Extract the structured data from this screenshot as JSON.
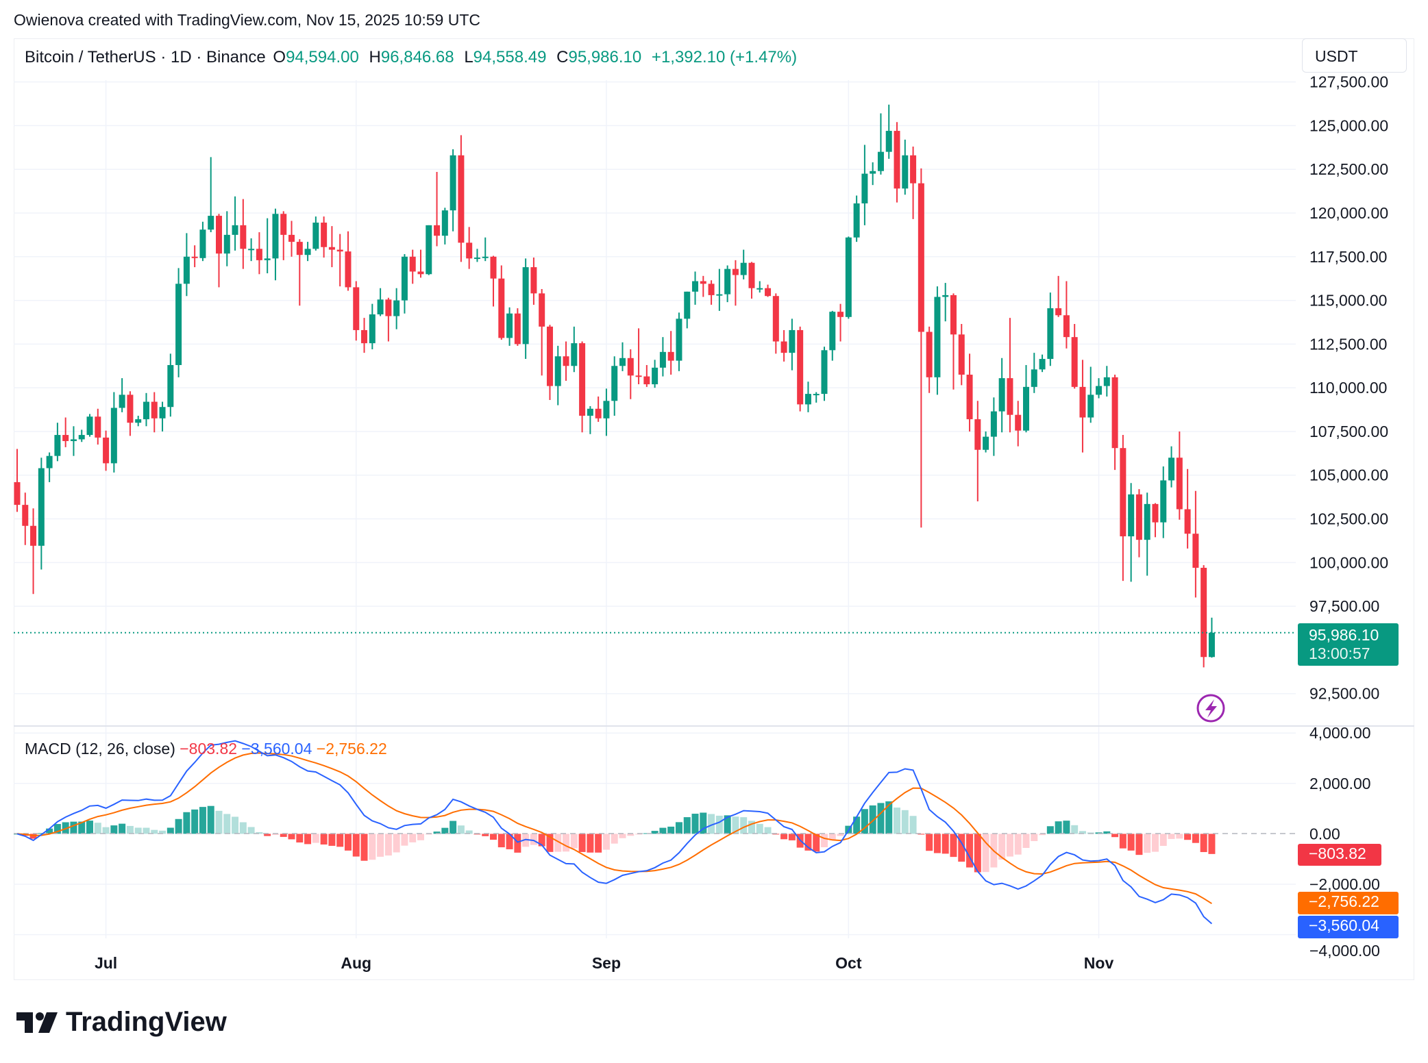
{
  "credit": "Owienova created with TradingView.com, Nov 15, 2025 10:59 UTC",
  "legend": {
    "symbol": "Bitcoin / TetherUS · 1D · Binance",
    "o_label": "O",
    "o": "94,594.00",
    "h_label": "H",
    "h": "96,846.68",
    "l_label": "L",
    "l": "94,558.49",
    "c_label": "C",
    "c": "95,986.10",
    "change": "+1,392.10 (+1.47%)"
  },
  "currency": "USDT",
  "last_price": {
    "price": "95,986.10",
    "countdown": "13:00:57"
  },
  "macd_legend": {
    "name": "MACD (12, 26, close)",
    "histogram": "−803.82",
    "macd": "−3,560.04",
    "signal": "−2,756.22"
  },
  "macd_tags": {
    "histogram": "−803.82",
    "signal": "−2,756.22",
    "macd": "−3,560.04"
  },
  "brand": "TradingView",
  "colors": {
    "up": "#089981",
    "down": "#f23645",
    "macd": "#2962ff",
    "signal": "#ff6d00",
    "hist_up_strong": "#26a69a",
    "hist_up_weak": "#b2dfdb",
    "hist_down_strong": "#ff5252",
    "hist_down_weak": "#ffcdd2",
    "lightning": "#9c27b0"
  },
  "icons": {
    "lightning": "lightning-bolt-icon",
    "logo": "tradingview-logo-icon"
  },
  "chart_data": {
    "type": "candlestick",
    "timeframe": "1D",
    "price_axis": {
      "ticks": [
        "92,500.00",
        "97,500.00",
        "100,000.00",
        "102,500.00",
        "105,000.00",
        "107,500.00",
        "110,000.00",
        "112,500.00",
        "115,000.00",
        "117,500.00",
        "120,000.00",
        "122,500.00",
        "125,000.00",
        "127,500.00"
      ],
      "tick_values": [
        92500,
        97500,
        100000,
        102500,
        105000,
        107500,
        110000,
        112500,
        115000,
        117500,
        120000,
        122500,
        125000,
        127500
      ],
      "grid": true
    },
    "time_axis": {
      "labels": [
        "Jul",
        "Aug",
        "Sep",
        "Oct",
        "Nov"
      ],
      "dates": [
        "2025-07-01",
        "2025-08-01",
        "2025-09-01",
        "2025-10-01",
        "2025-11-01"
      ]
    },
    "macd_axis": {
      "ticks": [
        "4,000.00",
        "2,000.00",
        "0.00",
        "−2,000.00",
        "−4,000.00"
      ],
      "tick_values": [
        4000,
        2000,
        0,
        -2000,
        -4000
      ]
    },
    "macd_params": {
      "fast": 12,
      "slow": 26,
      "signal": 9,
      "source": "close"
    },
    "candles": [
      [
        "2025-06-20",
        104600,
        106500,
        102900,
        103300
      ],
      [
        "2025-06-21",
        103300,
        104000,
        101000,
        102100
      ],
      [
        "2025-06-22",
        102100,
        103100,
        98200,
        100960
      ],
      [
        "2025-06-23",
        100960,
        106000,
        99600,
        105400
      ],
      [
        "2025-06-24",
        105400,
        106300,
        104600,
        106100
      ],
      [
        "2025-06-25",
        106100,
        108000,
        105800,
        107300
      ],
      [
        "2025-06-26",
        107300,
        108300,
        106600,
        106950
      ],
      [
        "2025-06-27",
        106950,
        107800,
        106100,
        107050
      ],
      [
        "2025-06-28",
        107050,
        107600,
        106900,
        107300
      ],
      [
        "2025-06-29",
        107300,
        108500,
        107200,
        108350
      ],
      [
        "2025-06-30",
        108350,
        108800,
        106750,
        107150
      ],
      [
        "2025-07-01",
        107150,
        107550,
        105250,
        105680
      ],
      [
        "2025-07-02",
        105680,
        109750,
        105150,
        108850
      ],
      [
        "2025-07-03",
        108850,
        110550,
        108600,
        109600
      ],
      [
        "2025-07-04",
        109600,
        109800,
        107250,
        108000
      ],
      [
        "2025-07-05",
        108000,
        108400,
        107800,
        108200
      ],
      [
        "2025-07-06",
        108200,
        109700,
        107800,
        109200
      ],
      [
        "2025-07-07",
        109200,
        109750,
        107450,
        108250
      ],
      [
        "2025-07-08",
        108250,
        109200,
        107500,
        108900
      ],
      [
        "2025-07-09",
        108900,
        111950,
        108350,
        111300
      ],
      [
        "2025-07-10",
        111300,
        116850,
        110600,
        115950
      ],
      [
        "2025-07-11",
        115950,
        118850,
        115250,
        117500
      ],
      [
        "2025-07-12",
        117500,
        118150,
        116900,
        117420
      ],
      [
        "2025-07-13",
        117420,
        119500,
        117250,
        119050
      ],
      [
        "2025-07-14",
        119050,
        123200,
        118900,
        119840
      ],
      [
        "2025-07-15",
        119840,
        119950,
        115750,
        117680
      ],
      [
        "2025-07-16",
        117680,
        120100,
        116950,
        118750
      ],
      [
        "2025-07-17",
        118750,
        120950,
        117850,
        119300
      ],
      [
        "2025-07-18",
        119300,
        120800,
        116800,
        117950
      ],
      [
        "2025-07-19",
        117950,
        118550,
        117250,
        117950
      ],
      [
        "2025-07-20",
        117950,
        118900,
        116500,
        117300
      ],
      [
        "2025-07-21",
        117300,
        119700,
        116550,
        117400
      ],
      [
        "2025-07-22",
        117400,
        120250,
        116150,
        119950
      ],
      [
        "2025-07-23",
        119950,
        120100,
        117300,
        118750
      ],
      [
        "2025-07-24",
        118750,
        119550,
        117500,
        118350
      ],
      [
        "2025-07-25",
        118350,
        118500,
        114700,
        117600
      ],
      [
        "2025-07-26",
        117600,
        118350,
        117250,
        117950
      ],
      [
        "2025-07-27",
        117950,
        119800,
        117850,
        119450
      ],
      [
        "2025-07-28",
        119450,
        119800,
        117450,
        118050
      ],
      [
        "2025-07-29",
        118050,
        119250,
        116900,
        117900
      ],
      [
        "2025-07-30",
        117900,
        118800,
        115800,
        117800
      ],
      [
        "2025-07-31",
        117800,
        118950,
        115550,
        115750
      ],
      [
        "2025-08-01",
        115750,
        116100,
        112700,
        113300
      ],
      [
        "2025-08-02",
        113300,
        114000,
        112000,
        112550
      ],
      [
        "2025-08-03",
        112550,
        114800,
        112200,
        114200
      ],
      [
        "2025-08-04",
        114200,
        115700,
        114100,
        115050
      ],
      [
        "2025-08-05",
        115050,
        115150,
        112650,
        114100
      ],
      [
        "2025-08-06",
        114100,
        115700,
        113350,
        115000
      ],
      [
        "2025-08-07",
        115000,
        117650,
        114250,
        117500
      ],
      [
        "2025-08-08",
        117500,
        117900,
        115950,
        116650
      ],
      [
        "2025-08-09",
        116650,
        117900,
        116300,
        116500
      ],
      [
        "2025-08-10",
        116500,
        119300,
        116450,
        119300
      ],
      [
        "2025-08-11",
        119300,
        122350,
        118100,
        118700
      ],
      [
        "2025-08-12",
        118700,
        120300,
        118200,
        120150
      ],
      [
        "2025-08-13",
        120150,
        123650,
        118950,
        123300
      ],
      [
        "2025-08-14",
        123300,
        124450,
        117200,
        118300
      ],
      [
        "2025-08-15",
        118300,
        119200,
        116800,
        117400
      ],
      [
        "2025-08-16",
        117400,
        117950,
        117200,
        117450
      ],
      [
        "2025-08-17",
        117450,
        118600,
        117250,
        117500
      ],
      [
        "2025-08-18",
        117500,
        117550,
        114650,
        116250
      ],
      [
        "2025-08-19",
        116250,
        117000,
        112750,
        112850
      ],
      [
        "2025-08-20",
        112850,
        114600,
        112400,
        114250
      ],
      [
        "2025-08-21",
        114250,
        114550,
        112400,
        112500
      ],
      [
        "2025-08-22",
        112500,
        117400,
        111650,
        116900
      ],
      [
        "2025-08-23",
        116900,
        117450,
        114750,
        115400
      ],
      [
        "2025-08-24",
        115400,
        115650,
        110700,
        113500
      ],
      [
        "2025-08-25",
        113500,
        113600,
        109300,
        110100
      ],
      [
        "2025-08-26",
        110100,
        112400,
        109000,
        111800
      ],
      [
        "2025-08-27",
        111800,
        112650,
        110400,
        111250
      ],
      [
        "2025-08-28",
        111250,
        113500,
        110900,
        112550
      ],
      [
        "2025-08-29",
        112550,
        112650,
        107450,
        108400
      ],
      [
        "2025-08-30",
        108400,
        108950,
        107350,
        108800
      ],
      [
        "2025-08-31",
        108800,
        109500,
        108050,
        108250
      ],
      [
        "2025-09-01",
        108250,
        109950,
        107250,
        109250
      ],
      [
        "2025-09-02",
        109250,
        111800,
        108400,
        111250
      ],
      [
        "2025-09-03",
        111250,
        112600,
        110950,
        111700
      ],
      [
        "2025-09-04",
        111700,
        112200,
        109350,
        110700
      ],
      [
        "2025-09-05",
        110700,
        113400,
        110200,
        110650
      ],
      [
        "2025-09-06",
        110650,
        111300,
        110050,
        110200
      ],
      [
        "2025-09-07",
        110200,
        111600,
        110000,
        111150
      ],
      [
        "2025-09-08",
        111150,
        112900,
        110650,
        112050
      ],
      [
        "2025-09-09",
        112050,
        113250,
        110750,
        111550
      ],
      [
        "2025-09-10",
        111550,
        114300,
        110950,
        113950
      ],
      [
        "2025-09-11",
        113950,
        115500,
        113400,
        115500
      ],
      [
        "2025-09-12",
        115500,
        116650,
        114750,
        116100
      ],
      [
        "2025-09-13",
        116100,
        116400,
        115200,
        115950
      ],
      [
        "2025-09-14",
        115950,
        116150,
        114750,
        115300
      ],
      [
        "2025-09-15",
        115300,
        116800,
        114400,
        115350
      ],
      [
        "2025-09-16",
        115350,
        117000,
        114900,
        116800
      ],
      [
        "2025-09-17",
        116800,
        117300,
        114700,
        116450
      ],
      [
        "2025-09-18",
        116450,
        117900,
        116200,
        117150
      ],
      [
        "2025-09-19",
        117150,
        117200,
        115100,
        115700
      ],
      [
        "2025-09-20",
        115700,
        116100,
        115450,
        115700
      ],
      [
        "2025-09-21",
        115700,
        115900,
        115200,
        115250
      ],
      [
        "2025-09-22",
        115250,
        115400,
        111950,
        112650
      ],
      [
        "2025-09-23",
        112650,
        113300,
        111500,
        112000
      ],
      [
        "2025-09-24",
        112000,
        113950,
        111000,
        113300
      ],
      [
        "2025-09-25",
        113300,
        113500,
        108650,
        109050
      ],
      [
        "2025-09-26",
        109050,
        110350,
        108600,
        109650
      ],
      [
        "2025-09-27",
        109650,
        109750,
        109150,
        109650
      ],
      [
        "2025-09-28",
        109650,
        112350,
        109250,
        112150
      ],
      [
        "2025-09-29",
        112150,
        114400,
        111550,
        114350
      ],
      [
        "2025-09-30",
        114350,
        114800,
        112650,
        114050
      ],
      [
        "2025-10-01",
        114050,
        118650,
        113950,
        118600
      ],
      [
        "2025-10-02",
        118600,
        121000,
        118350,
        120550
      ],
      [
        "2025-10-03",
        120550,
        123900,
        119300,
        122250
      ],
      [
        "2025-10-04",
        122250,
        122900,
        121600,
        122400
      ],
      [
        "2025-10-05",
        122400,
        125700,
        122200,
        123500
      ],
      [
        "2025-10-06",
        123500,
        126200,
        123100,
        124700
      ],
      [
        "2025-10-07",
        124700,
        125200,
        120600,
        121400
      ],
      [
        "2025-10-08",
        121400,
        124200,
        121050,
        123300
      ],
      [
        "2025-10-09",
        123300,
        123800,
        119650,
        121700
      ],
      [
        "2025-10-10",
        121700,
        122550,
        102000,
        113200
      ],
      [
        "2025-10-11",
        113200,
        113500,
        109700,
        110600
      ],
      [
        "2025-10-12",
        110600,
        115800,
        109600,
        115200
      ],
      [
        "2025-10-13",
        115200,
        116000,
        113800,
        115300
      ],
      [
        "2025-10-14",
        115300,
        115400,
        109900,
        113050
      ],
      [
        "2025-10-15",
        113050,
        113650,
        110150,
        110750
      ],
      [
        "2025-10-16",
        110750,
        111950,
        107500,
        108200
      ],
      [
        "2025-10-17",
        108200,
        109250,
        103500,
        106450
      ],
      [
        "2025-10-18",
        106450,
        107500,
        106300,
        107200
      ],
      [
        "2025-10-19",
        107200,
        109450,
        106100,
        108650
      ],
      [
        "2025-10-20",
        108650,
        111700,
        107450,
        110550
      ],
      [
        "2025-10-21",
        110550,
        114000,
        107450,
        108450
      ],
      [
        "2025-10-22",
        108450,
        109250,
        106650,
        107550
      ],
      [
        "2025-10-23",
        107550,
        111300,
        107450,
        110050
      ],
      [
        "2025-10-24",
        110050,
        112000,
        109700,
        111050
      ],
      [
        "2025-10-25",
        111050,
        111900,
        110900,
        111650
      ],
      [
        "2025-10-26",
        111650,
        115450,
        111250,
        114550
      ],
      [
        "2025-10-27",
        114550,
        116400,
        114050,
        114150
      ],
      [
        "2025-10-28",
        114150,
        116100,
        112250,
        112900
      ],
      [
        "2025-10-29",
        112900,
        113650,
        109950,
        110050
      ],
      [
        "2025-10-30",
        110050,
        111600,
        106300,
        108300
      ],
      [
        "2025-10-31",
        108300,
        111200,
        108000,
        109600
      ],
      [
        "2025-11-01",
        109600,
        110550,
        109400,
        110100
      ],
      [
        "2025-11-02",
        110100,
        111250,
        109500,
        110600
      ],
      [
        "2025-11-03",
        110600,
        110750,
        105300,
        106550
      ],
      [
        "2025-11-04",
        106550,
        107300,
        98950,
        101500
      ],
      [
        "2025-11-05",
        101500,
        104550,
        98900,
        103900
      ],
      [
        "2025-11-06",
        103900,
        104200,
        100300,
        101300
      ],
      [
        "2025-11-07",
        101300,
        104000,
        99250,
        103350
      ],
      [
        "2025-11-08",
        103350,
        103400,
        101450,
        102300
      ],
      [
        "2025-11-09",
        102300,
        105500,
        101400,
        104700
      ],
      [
        "2025-11-10",
        104700,
        106650,
        104300,
        106000
      ],
      [
        "2025-11-11",
        106000,
        107500,
        102450,
        103050
      ],
      [
        "2025-11-12",
        103050,
        105350,
        100800,
        101650
      ],
      [
        "2025-11-13",
        101650,
        104100,
        98000,
        99700
      ],
      [
        "2025-11-14",
        99700,
        99850,
        94000,
        94594
      ],
      [
        "2025-11-15",
        94594,
        96846.68,
        94558.49,
        95986.1
      ]
    ]
  }
}
